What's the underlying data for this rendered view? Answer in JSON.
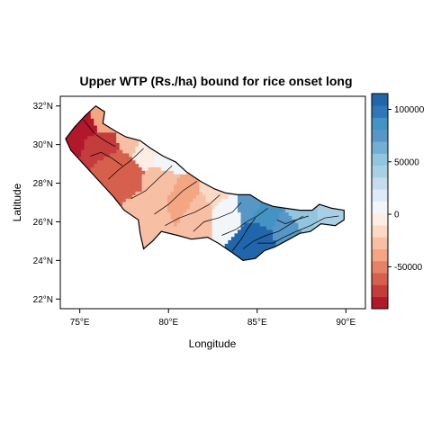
{
  "chart_data": {
    "type": "heatmap",
    "title": "Upper WTP (Rs./ha) bound for rice onset long",
    "xlabel": "Longitude",
    "ylabel": "Latitude",
    "x_ticks": [
      {
        "value": 75,
        "label": "75°E"
      },
      {
        "value": 80,
        "label": "80°E"
      },
      {
        "value": 85,
        "label": "85°E"
      },
      {
        "value": 90,
        "label": "90°E"
      }
    ],
    "y_ticks": [
      {
        "value": 22,
        "label": "22°N"
      },
      {
        "value": 24,
        "label": "24°N"
      },
      {
        "value": 26,
        "label": "26°N"
      },
      {
        "value": 28,
        "label": "28°N"
      },
      {
        "value": 30,
        "label": "30°N"
      },
      {
        "value": 32,
        "label": "32°N"
      }
    ],
    "xlim": [
      73.9,
      91.1
    ],
    "ylim": [
      21.5,
      32.5
    ],
    "colorbar": {
      "min": -90000,
      "max": 115000,
      "ticks": [
        {
          "value": 100000,
          "label": "100000"
        },
        {
          "value": 50000,
          "label": "50000"
        },
        {
          "value": 0,
          "label": "0"
        },
        {
          "value": -50000,
          "label": "-50000"
        }
      ],
      "colors": [
        "#b2182b",
        "#c43c3c",
        "#d6604d",
        "#e58267",
        "#f4a582",
        "#f7bfa3",
        "#fbd9c4",
        "#fdeee5",
        "#f2f6f9",
        "#deebf7",
        "#c6dbef",
        "#a9cfe5",
        "#92c5de",
        "#73afd2",
        "#5797c6",
        "#4393c3",
        "#3078b5",
        "#2166ac"
      ]
    },
    "regions": [
      {
        "lon": 74.8,
        "lat": 30.4,
        "value": -85000
      },
      {
        "lon": 75.4,
        "lat": 30.8,
        "value": -82000
      },
      {
        "lon": 75.8,
        "lat": 30.0,
        "value": -78000
      },
      {
        "lon": 76.5,
        "lat": 29.8,
        "value": -72000
      },
      {
        "lon": 76.9,
        "lat": 29.0,
        "value": -65000
      },
      {
        "lon": 77.4,
        "lat": 28.4,
        "value": -58000
      },
      {
        "lon": 76.2,
        "lat": 31.2,
        "value": -35000
      },
      {
        "lon": 77.6,
        "lat": 30.2,
        "value": -25000
      },
      {
        "lon": 78.8,
        "lat": 29.6,
        "value": -5000
      },
      {
        "lon": 79.8,
        "lat": 29.2,
        "value": 3000
      },
      {
        "lon": 79.5,
        "lat": 28.0,
        "value": -30000
      },
      {
        "lon": 80.8,
        "lat": 27.2,
        "value": -38000
      },
      {
        "lon": 81.6,
        "lat": 26.6,
        "value": -30000
      },
      {
        "lon": 78.8,
        "lat": 26.4,
        "value": -25000
      },
      {
        "lon": 82.6,
        "lat": 27.4,
        "value": -12000
      },
      {
        "lon": 83.3,
        "lat": 26.6,
        "value": 12000
      },
      {
        "lon": 84.4,
        "lat": 26.8,
        "value": 70000
      },
      {
        "lon": 85.4,
        "lat": 26.2,
        "value": 85000
      },
      {
        "lon": 85.0,
        "lat": 25.2,
        "value": 105000
      },
      {
        "lon": 86.5,
        "lat": 25.6,
        "value": 78000
      },
      {
        "lon": 87.5,
        "lat": 26.4,
        "value": 48000
      },
      {
        "lon": 89.0,
        "lat": 26.3,
        "value": 40000
      }
    ]
  }
}
